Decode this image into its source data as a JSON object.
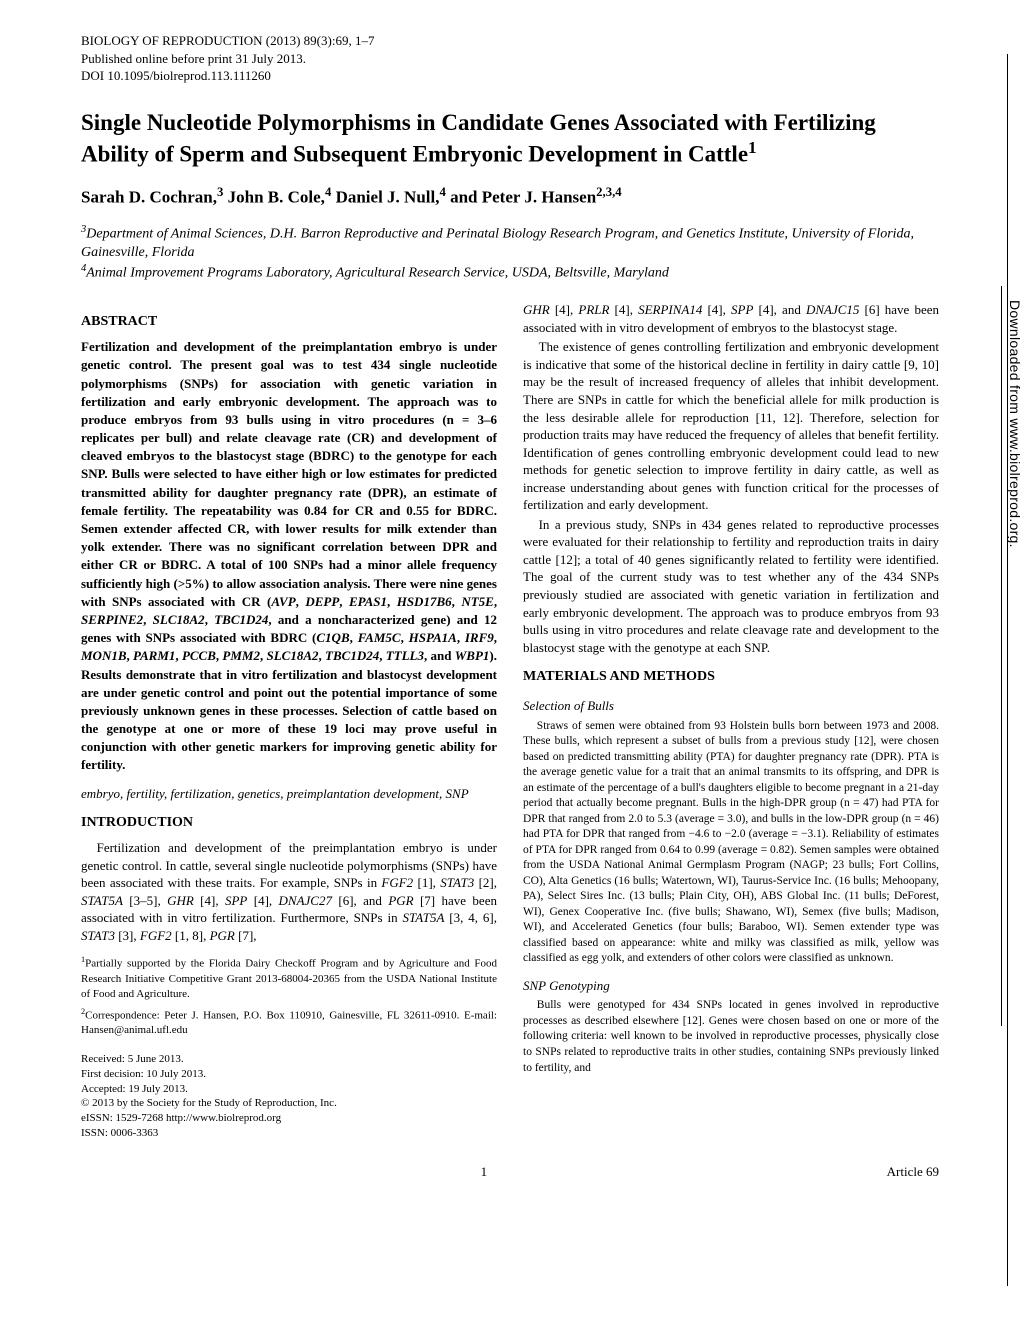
{
  "journal_line": "BIOLOGY OF REPRODUCTION (2013) 89(3):69, 1–7",
  "pub_line": "Published online before print 31 July 2013.",
  "doi_line": "DOI 10.1095/biolreprod.113.111260",
  "title": "Single Nucleotide Polymorphisms in Candidate Genes Associated with Fertilizing Ability of Sperm and Subsequent Embryonic Development in Cattle",
  "title_sup": "1",
  "authors_html": "Sarah D. Cochran,<sup>3</sup> John B. Cole,<sup>4</sup> Daniel J. Null,<sup>4</sup> and Peter J. Hansen<sup>2,3,4</sup>",
  "affil3": "Department of Animal Sciences, D.H. Barron Reproductive and Perinatal Biology Research Program, and Genetics Institute, University of Florida, Gainesville, Florida",
  "affil4": "Animal Improvement Programs Laboratory, Agricultural Research Service, USDA, Beltsville, Maryland",
  "abstract_head": "ABSTRACT",
  "abstract_body": "Fertilization and development of the preimplantation embryo is under genetic control. The present goal was to test 434 single nucleotide polymorphisms (SNPs) for association with genetic variation in fertilization and early embryonic development. The approach was to produce embryos from 93 bulls using in vitro procedures (n = 3–6 replicates per bull) and relate cleavage rate (CR) and development of cleaved embryos to the blastocyst stage (BDRC) to the genotype for each SNP. Bulls were selected to have either high or low estimates for predicted transmitted ability for daughter pregnancy rate (DPR), an estimate of female fertility. The repeatability was 0.84 for CR and 0.55 for BDRC. Semen extender affected CR, with lower results for milk extender than yolk extender. There was no significant correlation between DPR and either CR or BDRC. A total of 100 SNPs had a minor allele frequency sufficiently high (>5%) to allow association analysis. There were nine genes with SNPs associated with CR (AVP, DEPP, EPAS1, HSD17B6, NT5E, SERPINE2, SLC18A2, TBC1D24, and a noncharacterized gene) and 12 genes with SNPs associated with BDRC (C1QB, FAM5C, HSPA1A, IRF9, MON1B, PARM1, PCCB, PMM2, SLC18A2, TBC1D24, TTLL3, and WBP1). Results demonstrate that in vitro fertilization and blastocyst development are under genetic control and point out the potential importance of some previously unknown genes in these processes. Selection of cattle based on the genotype at one or more of these 19 loci may prove useful in conjunction with other genetic markers for improving genetic ability for fertility.",
  "keywords": "embryo, fertility, fertilization, genetics, preimplantation development, SNP",
  "intro_head": "INTRODUCTION",
  "intro_p1": "Fertilization and development of the preimplantation embryo is under genetic control. In cattle, several single nucleotide polymorphisms (SNPs) have been associated with these traits. For example, SNPs in FGF2 [1], STAT3 [2], STAT5A [3–5], GHR [4], SPP [4], DNAJC27 [6], and PGR [7] have been associated with in vitro fertilization. Furthermore, SNPs in STAT5A [3, 4, 6], STAT3 [3], FGF2 [1, 8], PGR [7],",
  "intro_p2_top": "GHR [4], PRLR [4], SERPINA14 [4], SPP [4], and DNAJC15 [6] have been associated with in vitro development of embryos to the blastocyst stage.",
  "intro_p3": "The existence of genes controlling fertilization and embryonic development is indicative that some of the historical decline in fertility in dairy cattle [9, 10] may be the result of increased frequency of alleles that inhibit development. There are SNPs in cattle for which the beneficial allele for milk production is the less desirable allele for reproduction [11, 12]. Therefore, selection for production traits may have reduced the frequency of alleles that benefit fertility. Identification of genes controlling embryonic development could lead to new methods for genetic selection to improve fertility in dairy cattle, as well as increase understanding about genes with function critical for the processes of fertilization and early development.",
  "intro_p4": "In a previous study, SNPs in 434 genes related to reproductive processes were evaluated for their relationship to fertility and reproduction traits in dairy cattle [12]; a total of 40 genes significantly related to fertility were identified. The goal of the current study was to test whether any of the 434 SNPs previously studied are associated with genetic variation in fertilization and early embryonic development. The approach was to produce embryos from 93 bulls using in vitro procedures and relate cleavage rate and development to the blastocyst stage with the genotype at each SNP.",
  "mm_head": "MATERIALS AND METHODS",
  "sub_bulls": "Selection of Bulls",
  "bulls_p": "Straws of semen were obtained from 93 Holstein bulls born between 1973 and 2008. These bulls, which represent a subset of bulls from a previous study [12], were chosen based on predicted transmitting ability (PTA) for daughter pregnancy rate (DPR). PTA is the average genetic value for a trait that an animal transmits to its offspring, and DPR is an estimate of the percentage of a bull's daughters eligible to become pregnant in a 21-day period that actually become pregnant. Bulls in the high-DPR group (n = 47) had PTA for DPR that ranged from 2.0 to 5.3 (average = 3.0), and bulls in the low-DPR group (n = 46) had PTA for DPR that ranged from −4.6 to −2.0 (average = −3.1). Reliability of estimates of PTA for DPR ranged from 0.64 to 0.99 (average = 0.82). Semen samples were obtained from the USDA National Animal Germplasm Program (NAGP; 23 bulls; Fort Collins, CO), Alta Genetics (16 bulls; Watertown, WI), Taurus-Service Inc. (16 bulls; Mehoopany, PA), Select Sires Inc. (13 bulls; Plain City, OH), ABS Global Inc. (11 bulls; DeForest, WI), Genex Cooperative Inc. (five bulls; Shawano, WI), Semex (five bulls; Madison, WI), and Accelerated Genetics (four bulls; Baraboo, WI). Semen extender type was classified based on appearance: white and milky was classified as milk, yellow was classified as egg yolk, and extenders of other colors were classified as unknown.",
  "sub_snp": "SNP Genotyping",
  "snp_p": "Bulls were genotyped for 434 SNPs located in genes involved in reproductive processes as described elsewhere [12]. Genes were chosen based on one or more of the following criteria: well known to be involved in reproductive processes, physically close to SNPs related to reproductive traits in other studies, containing SNPs previously linked to fertility, and",
  "footnote1": "Partially supported by the Florida Dairy Checkoff Program and by Agriculture and Food Research Initiative Competitive Grant 2013-68004-20365 from the USDA National Institute of Food and Agriculture.",
  "footnote2": "Correspondence: Peter J. Hansen, P.O. Box 110910, Gainesville, FL 32611-0910. E-mail: Hansen@animal.ufl.edu",
  "received": "Received: 5 June 2013.",
  "first_decision": "First decision: 10 July 2013.",
  "accepted": "Accepted: 19 July 2013.",
  "copyright": "© 2013 by the Society for the Study of Reproduction, Inc.",
  "eissn": "eISSN: 1529-7268 http://www.biolreprod.org",
  "issn": "ISSN: 0006-3363",
  "sidebar": "Downloaded from www.biolreprod.org.",
  "footer_page": "1",
  "footer_article": "Article 69"
}
